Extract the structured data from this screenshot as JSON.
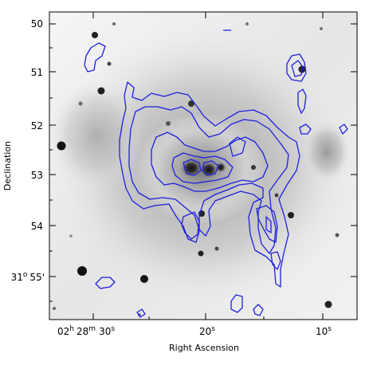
{
  "image": {
    "description": "Greyscale optical image of a galaxy group overlaid with blue contour lines",
    "colors": {
      "background": "#ffffff",
      "image_light": "#f4f4f4",
      "image_mid": "#cfcfcf",
      "image_dark": "#1c1c1c",
      "contour": "#1f1fe0",
      "axis": "#000000"
    }
  },
  "axes": {
    "y_title": "Declination",
    "x_title": "Right Ascension",
    "y_ticks": [
      {
        "value": "50",
        "prefix": "",
        "sup": "",
        "suffix": ""
      },
      {
        "value": "51",
        "prefix": "",
        "sup": "",
        "suffix": ""
      },
      {
        "value": "52",
        "prefix": "",
        "sup": "",
        "suffix": ""
      },
      {
        "value": "53",
        "prefix": "",
        "sup": "",
        "suffix": ""
      },
      {
        "value": "54",
        "prefix": "",
        "sup": "",
        "suffix": ""
      },
      {
        "value": "55'",
        "prefix": "31",
        "sup": "o",
        "suffix": ""
      }
    ],
    "x_ticks": [
      {
        "label": "02h 28m 30s"
      },
      {
        "label": "20s"
      },
      {
        "label": "10s"
      }
    ],
    "x_tick_parts": {
      "first": {
        "h": "02",
        "h_unit": "h",
        "m": "28",
        "m_unit": "m",
        "s": "30",
        "s_unit": "s"
      },
      "second": {
        "s": "20",
        "s_unit": "s"
      },
      "third": {
        "s": "10",
        "s_unit": "s"
      }
    }
  }
}
